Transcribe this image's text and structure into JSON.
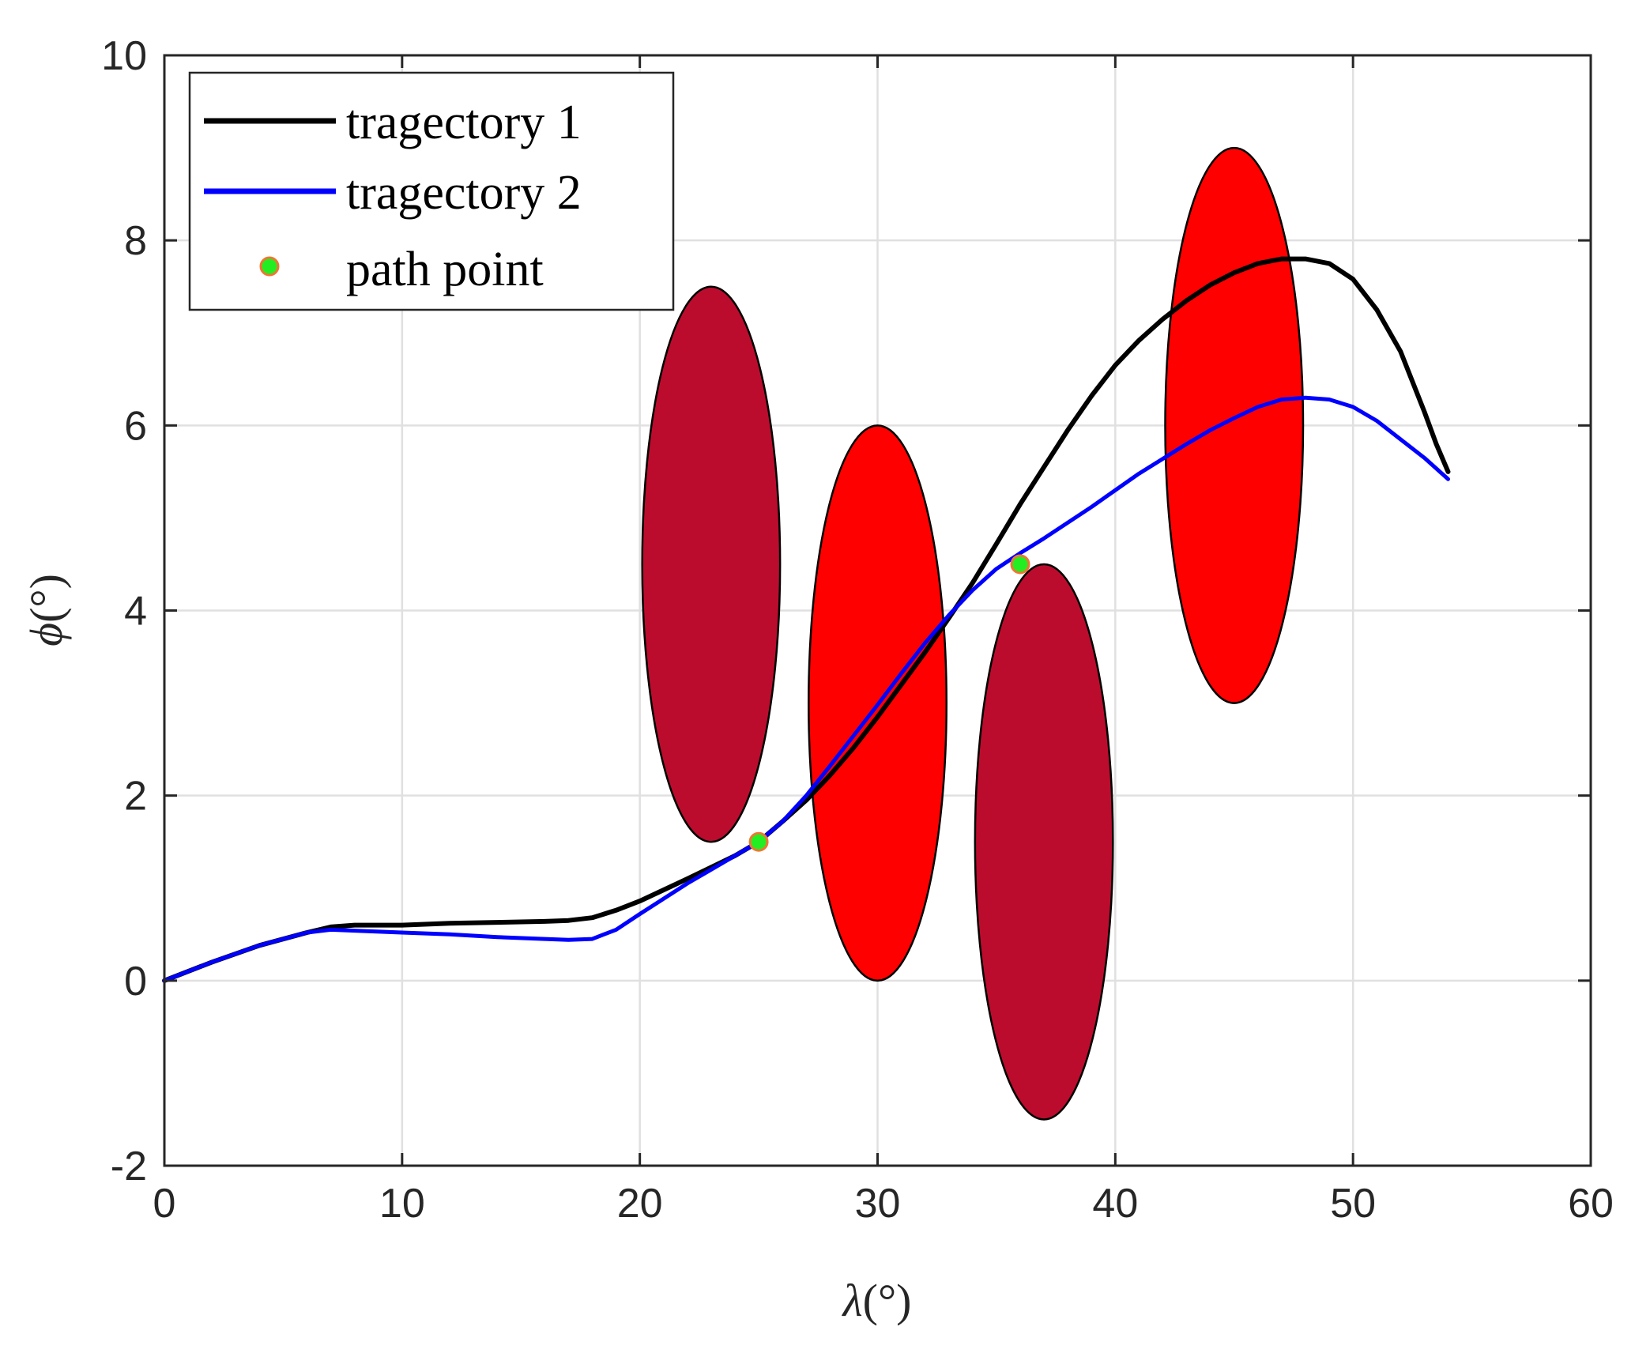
{
  "chart_data": {
    "type": "line",
    "xlabel_symbol": "λ",
    "xlabel_unit": "(°)",
    "ylabel_symbol": "ϕ",
    "ylabel_unit": "(°)",
    "xlim": [
      0,
      60
    ],
    "ylim": [
      -2,
      10
    ],
    "xticks": [
      0,
      10,
      20,
      30,
      40,
      50,
      60
    ],
    "yticks": [
      -2,
      0,
      2,
      4,
      6,
      8,
      10
    ],
    "xtick_labels": [
      "0",
      "10",
      "20",
      "30",
      "40",
      "50",
      "60"
    ],
    "ytick_labels": [
      "-2",
      "0",
      "2",
      "4",
      "6",
      "8",
      "10"
    ],
    "grid": true,
    "legend_position": "top-left",
    "colors": {
      "trajectory1": "#000000",
      "trajectory2": "#0000ff",
      "obstacle_dark": "#bb0c2e",
      "obstacle_bright": "#ff0000",
      "path_point_fill": "#22ee22",
      "path_point_edge": "#ee7733"
    },
    "series": [
      {
        "name": "tragectory 1",
        "x": [
          0,
          2,
          4,
          6,
          7,
          8,
          10,
          12,
          14,
          16,
          17,
          18,
          19,
          20,
          22,
          24,
          25,
          26,
          27,
          28,
          29,
          30,
          31,
          32,
          33,
          34,
          35,
          36,
          37,
          38,
          39,
          40,
          41,
          42,
          43,
          44,
          45,
          46,
          47,
          48,
          49,
          50,
          51,
          52,
          53,
          53.5,
          54
        ],
        "y": [
          0,
          0.2,
          0.38,
          0.52,
          0.58,
          0.6,
          0.6,
          0.62,
          0.63,
          0.64,
          0.65,
          0.68,
          0.76,
          0.86,
          1.1,
          1.35,
          1.5,
          1.72,
          1.95,
          2.22,
          2.52,
          2.85,
          3.2,
          3.55,
          3.92,
          4.3,
          4.72,
          5.15,
          5.55,
          5.95,
          6.32,
          6.65,
          6.92,
          7.15,
          7.35,
          7.52,
          7.65,
          7.75,
          7.8,
          7.8,
          7.75,
          7.58,
          7.25,
          6.8,
          6.15,
          5.8,
          5.5
        ]
      },
      {
        "name": "tragectory 2",
        "x": [
          0,
          2,
          4,
          6,
          7,
          8,
          10,
          12,
          14,
          16,
          17,
          18,
          19,
          20,
          22,
          24,
          25,
          26,
          27,
          28,
          29,
          30,
          31,
          32,
          33,
          34,
          35,
          36,
          37,
          38,
          39,
          40,
          41,
          42,
          43,
          44,
          45,
          46,
          47,
          48,
          49,
          50,
          51,
          52,
          53,
          54
        ],
        "y": [
          0,
          0.2,
          0.38,
          0.52,
          0.55,
          0.54,
          0.52,
          0.5,
          0.47,
          0.45,
          0.44,
          0.45,
          0.55,
          0.72,
          1.05,
          1.35,
          1.5,
          1.72,
          2.0,
          2.32,
          2.65,
          2.98,
          3.32,
          3.65,
          3.95,
          4.22,
          4.45,
          4.62,
          4.78,
          4.95,
          5.12,
          5.3,
          5.48,
          5.64,
          5.8,
          5.95,
          6.08,
          6.2,
          6.28,
          6.3,
          6.28,
          6.2,
          6.05,
          5.85,
          5.65,
          5.42
        ]
      }
    ],
    "path_points": {
      "name": "path point",
      "x": [
        25,
        36
      ],
      "y": [
        1.5,
        4.5
      ]
    },
    "obstacles": [
      {
        "cx": 23,
        "cy": 4.5,
        "rx": 2.9,
        "ry": 3.0,
        "fill": "obstacle_dark"
      },
      {
        "cx": 30,
        "cy": 3.0,
        "rx": 2.9,
        "ry": 3.0,
        "fill": "obstacle_bright"
      },
      {
        "cx": 37,
        "cy": 1.5,
        "rx": 2.9,
        "ry": 3.0,
        "fill": "obstacle_dark"
      },
      {
        "cx": 45,
        "cy": 6.0,
        "rx": 2.9,
        "ry": 3.0,
        "fill": "obstacle_bright"
      }
    ]
  }
}
